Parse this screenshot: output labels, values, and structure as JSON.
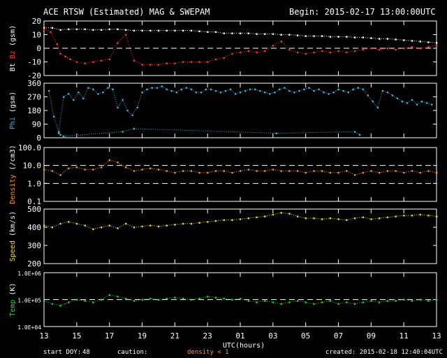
{
  "header": {
    "title": "ACE RTSW (Estimated) MAG & SWEPAM",
    "begin": "Begin: 2015-02-17 13:00:00UTC"
  },
  "footer": {
    "start_doy_label": "start DOY:",
    "start_doy_value": "48",
    "caution_label": "caution:",
    "caution_text": "density < 1",
    "created": "created: 2015-02-18 12:40:04UTC"
  },
  "colors": {
    "bt": "#ffffff",
    "bz": "#ff3a1a",
    "phi": "#2fb8e0",
    "density": "#ff9a1a",
    "speed": "#f0e020",
    "temp": "#22dd22",
    "caution": "#ff9a1a"
  },
  "chart_data": {
    "type": "scatter",
    "xlabel": "UTC(hours)",
    "x_ticks": [
      "13",
      "15",
      "17",
      "19",
      "21",
      "23",
      "01",
      "03",
      "05",
      "07",
      "09",
      "11",
      "13"
    ],
    "x_range_hours": [
      0,
      24
    ],
    "panels": [
      {
        "id": "mag",
        "ylabel_parts": [
          "Bt",
          "Bz",
          "(gsm)"
        ],
        "ylim": [
          -20,
          20
        ],
        "scale": "linear",
        "ticks": [
          "20",
          "10",
          "0",
          "-10",
          "-20"
        ],
        "tick_values": [
          20,
          10,
          0,
          -10,
          -20
        ],
        "dashed": [
          0
        ],
        "series": [
          {
            "name": "Bt",
            "color_key": "bt",
            "x": [
              0,
              0.5,
              1,
              1.5,
              2,
              2.5,
              3,
              3.5,
              4,
              4.5,
              5,
              5.5,
              6,
              6.5,
              7,
              7.5,
              8,
              8.5,
              9,
              9.5,
              10,
              10.5,
              11,
              11.5,
              12,
              12.5,
              13,
              13.5,
              14,
              14.5,
              15,
              15.5,
              16,
              16.5,
              17,
              17.5,
              18,
              18.5,
              19,
              19.5,
              20,
              20.5,
              21,
              21.5,
              22,
              22.5,
              23,
              23.5,
              24
            ],
            "y": [
              15,
              15,
              13.5,
              14,
              14,
              14,
              13.5,
              13.5,
              14,
              14,
              13.5,
              13,
              13,
              13,
              13,
              13,
              13,
              13,
              13,
              12.5,
              12,
              12,
              11,
              11,
              11,
              11,
              10.5,
              10.5,
              10.5,
              10,
              10,
              9.5,
              9,
              9,
              9,
              8.5,
              8.5,
              8.5,
              8,
              8,
              7.5,
              7,
              7,
              6.5,
              6,
              5.5,
              5,
              4.5,
              4
            ]
          },
          {
            "name": "Bz",
            "color_key": "bz",
            "x": [
              0,
              0.4,
              0.8,
              1,
              1.3,
              1.6,
              2,
              2.5,
              3,
              3.5,
              4,
              4.5,
              5,
              5.5,
              6,
              6.5,
              7,
              7.5,
              8,
              8.5,
              9,
              9.5,
              10,
              10.5,
              11,
              11.5,
              12,
              12.5,
              13,
              13.5,
              14,
              14.5,
              15,
              15.5,
              16,
              16.5,
              17,
              17.5,
              18,
              18.5,
              19,
              19.5,
              20,
              20.5,
              21,
              21.5,
              22,
              22.5,
              23,
              23.5,
              24
            ],
            "y": [
              14,
              12,
              3,
              -4,
              -6,
              -8,
              -10,
              -11,
              -10,
              -9,
              -8,
              4,
              10,
              -9,
              -12,
              -12,
              -12,
              -11,
              -11,
              -10,
              -10,
              -10,
              -10,
              -8,
              -7,
              -4,
              -3,
              -2,
              -3,
              -2,
              2,
              5,
              -1,
              -3,
              -4,
              -3,
              -2,
              -3,
              -2,
              -3,
              -2,
              -1,
              0,
              -1,
              0,
              -1,
              0,
              1,
              0,
              1,
              2
            ]
          }
        ]
      },
      {
        "id": "phi",
        "ylabel_parts": [
          "Phi",
          "(gsm)"
        ],
        "ylim": [
          0,
          360
        ],
        "scale": "linear",
        "ticks": [
          "360",
          "270",
          "180",
          "90",
          "0"
        ],
        "tick_values": [
          360,
          270,
          180,
          90,
          0
        ],
        "dashed": [],
        "series": [
          {
            "name": "Phi",
            "color_key": "phi",
            "x": [
              0.3,
              0.6,
              0.9,
              1.2,
              1.5,
              1.8,
              2.1,
              2.4,
              2.7,
              3,
              3.3,
              3.6,
              3.9,
              4.2,
              4.5,
              4.8,
              5.1,
              5.4,
              5.7,
              6,
              6.3,
              6.6,
              6.9,
              7.2,
              7.5,
              7.8,
              8.1,
              8.4,
              8.7,
              9,
              9.3,
              9.6,
              9.9,
              10.2,
              10.5,
              10.8,
              11.1,
              11.4,
              11.7,
              12,
              12.3,
              12.6,
              12.9,
              13.2,
              13.5,
              13.8,
              14.1,
              14.4,
              14.7,
              15,
              15.3,
              15.6,
              15.9,
              16.2,
              16.5,
              16.8,
              17.1,
              17.4,
              17.7,
              18,
              18.3,
              18.6,
              18.9,
              19.2,
              19.5,
              19.8,
              20.1,
              20.4,
              20.7,
              21,
              21.3,
              21.6,
              21.9,
              22.2,
              22.5,
              22.8,
              23.1,
              23.4,
              23.7
            ],
            "y": [
              310,
              140,
              40,
              270,
              290,
              250,
              300,
              260,
              330,
              320,
              290,
              300,
              330,
              320,
              200,
              250,
              180,
              150,
              200,
              300,
              320,
              330,
              330,
              340,
              320,
              310,
              300,
              320,
              330,
              320,
              300,
              300,
              320,
              320,
              310,
              300,
              310,
              320,
              290,
              300,
              310,
              320,
              320,
              310,
              300,
              290,
              300,
              320,
              330,
              310,
              300,
              310,
              320,
              330,
              310,
              320,
              300,
              290,
              300,
              320,
              310,
              300,
              320,
              330,
              320,
              280,
              240,
              200,
              310,
              300,
              280,
              260,
              240,
              230,
              250,
              220,
              240,
              230,
              220
            ]
          },
          {
            "name": "Phi",
            "color_key": "phi",
            "x": [
              0.9,
              1.0,
              1.2,
              4.8,
              5.5,
              14.2,
              19.0,
              19.3
            ],
            "y": [
              30,
              20,
              10,
              40,
              60,
              30,
              40,
              20
            ]
          }
        ]
      },
      {
        "id": "density",
        "ylabel_parts": [
          "Density",
          "(/cm3)"
        ],
        "ylim": [
          0.1,
          100
        ],
        "scale": "log",
        "ticks": [
          "100.0",
          "10.0",
          "1.0",
          "0.1"
        ],
        "tick_values": [
          100,
          10,
          1,
          0.1
        ],
        "dashed": [
          10,
          1
        ],
        "series": [
          {
            "name": "Density",
            "color_key": "density",
            "x": [
              0,
              0.5,
              1,
              1.5,
              2,
              2.5,
              3,
              3.5,
              4,
              4.5,
              5,
              5.5,
              6,
              6.5,
              7,
              7.5,
              8,
              8.5,
              9,
              9.5,
              10,
              10.5,
              11,
              11.5,
              12,
              12.5,
              13,
              13.5,
              14,
              14.5,
              15,
              15.5,
              16,
              16.5,
              17,
              17.5,
              18,
              18.5,
              19,
              19.5,
              20,
              20.5,
              21,
              21.5,
              22,
              22.5,
              23,
              23.5,
              24
            ],
            "y": [
              6,
              5,
              3,
              7,
              8,
              6,
              6,
              8,
              20,
              15,
              8,
              5,
              6,
              7,
              6,
              5,
              4,
              5,
              5,
              4,
              4,
              5,
              5,
              4,
              5,
              6,
              5,
              5,
              6,
              5,
              5,
              5,
              4,
              5,
              5,
              4,
              4,
              5,
              3,
              4,
              5,
              4,
              5,
              5,
              4,
              5,
              4,
              5,
              4
            ]
          }
        ]
      },
      {
        "id": "speed",
        "ylabel_parts": [
          "Speed",
          "(km/s)"
        ],
        "ylim": [
          200,
          500
        ],
        "scale": "linear",
        "ticks": [
          "500",
          "400",
          "300",
          "200"
        ],
        "tick_values": [
          500,
          400,
          300,
          200
        ],
        "dashed": [],
        "series": [
          {
            "name": "Speed",
            "color_key": "speed",
            "x": [
              0,
              0.5,
              1,
              1.5,
              2,
              2.5,
              3,
              3.5,
              4,
              4.5,
              5,
              5.5,
              6,
              6.5,
              7,
              7.5,
              8,
              8.5,
              9,
              9.5,
              10,
              10.5,
              11,
              11.5,
              12,
              12.5,
              13,
              13.5,
              14,
              14.5,
              15,
              15.5,
              16,
              16.5,
              17,
              17.5,
              18,
              18.5,
              19,
              19.5,
              20,
              20.5,
              21,
              21.5,
              22,
              22.5,
              23,
              23.5,
              24
            ],
            "y": [
              410,
              400,
              420,
              430,
              420,
              410,
              390,
              400,
              410,
              395,
              420,
              400,
              405,
              410,
              405,
              410,
              415,
              420,
              420,
              425,
              430,
              435,
              440,
              440,
              445,
              450,
              455,
              460,
              470,
              480,
              475,
              460,
              450,
              450,
              445,
              450,
              445,
              440,
              450,
              455,
              445,
              450,
              455,
              460,
              465,
              465,
              470,
              465,
              460
            ]
          }
        ]
      },
      {
        "id": "temp",
        "ylabel_parts": [
          "Temp",
          "(K)"
        ],
        "ylim": [
          10000,
          1000000
        ],
        "scale": "log",
        "ticks": [
          "1.0E+06",
          "1.0E+05",
          "1.0E+04"
        ],
        "tick_values": [
          1000000,
          100000,
          10000
        ],
        "dashed": [
          100000
        ],
        "series": [
          {
            "name": "Temp",
            "color_key": "temp",
            "x": [
              0,
              0.5,
              1,
              1.5,
              2,
              2.5,
              3,
              3.5,
              4,
              4.5,
              5,
              5.5,
              6,
              6.5,
              7,
              7.5,
              8,
              8.5,
              9,
              9.5,
              10,
              10.5,
              11,
              11.5,
              12,
              12.5,
              13,
              13.5,
              14,
              14.5,
              15,
              15.5,
              16,
              16.5,
              17,
              17.5,
              18,
              18.5,
              19,
              19.5,
              20,
              20.5,
              21,
              21.5,
              22,
              22.5,
              23,
              23.5,
              24
            ],
            "y": [
              90000,
              70000,
              60000,
              80000,
              100000,
              90000,
              80000,
              100000,
              150000,
              130000,
              110000,
              90000,
              100000,
              110000,
              100000,
              110000,
              120000,
              110000,
              100000,
              110000,
              130000,
              120000,
              110000,
              100000,
              110000,
              90000,
              80000,
              90000,
              80000,
              70000,
              80000,
              90000,
              80000,
              70000,
              80000,
              90000,
              70000,
              80000,
              70000,
              80000,
              90000,
              80000,
              90000,
              90000,
              100000,
              90000,
              100000,
              90000,
              100000
            ]
          }
        ]
      }
    ]
  }
}
